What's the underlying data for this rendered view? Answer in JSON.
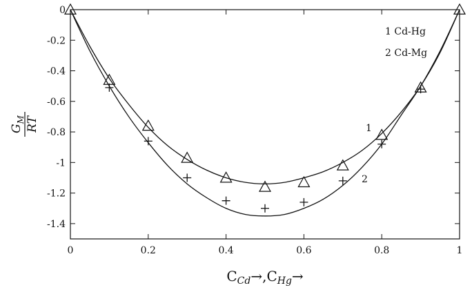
{
  "chart_data": {
    "type": "line",
    "title": "",
    "xlabel": {
      "c1": "C",
      "s1": "Cd",
      "arrow1": "→,",
      "c2": "C",
      "s2": "Hg",
      "arrow2": "→"
    },
    "ylabel": {
      "numerator": "G",
      "numerator_sub": "M",
      "denominator": "RT"
    },
    "xlim": [
      0,
      1
    ],
    "ylim": [
      -1.5,
      0
    ],
    "x_ticks": [
      0,
      0.2,
      0.4,
      0.6,
      0.8,
      1
    ],
    "x_tick_labels": [
      "0",
      "0.2",
      "0.4",
      "0.6",
      "0.8",
      "1"
    ],
    "y_ticks": [
      0,
      -0.2,
      -0.4,
      -0.6,
      -0.8,
      -1,
      -1.2,
      -1.4
    ],
    "y_tick_labels": [
      "0",
      "-0.2",
      "-0.4",
      "-0.6",
      "-0.8",
      "-1",
      "-1.2",
      "-1.4"
    ],
    "grid": false,
    "legend": {
      "placement": "top-right",
      "entries": [
        "1 Cd-Hg",
        "2 Cd-Mg"
      ]
    },
    "series": [
      {
        "name": "1 Cd-Hg",
        "curve_label": "1",
        "marker": "triangle",
        "color": "#111111",
        "curve": {
          "x": [
            0,
            0.05,
            0.1,
            0.15,
            0.2,
            0.25,
            0.3,
            0.35,
            0.4,
            0.45,
            0.5,
            0.55,
            0.6,
            0.65,
            0.7,
            0.75,
            0.8,
            0.85,
            0.9,
            0.95,
            1
          ],
          "y": [
            0,
            -0.24,
            -0.45,
            -0.62,
            -0.77,
            -0.89,
            -0.98,
            -1.05,
            -1.1,
            -1.13,
            -1.14,
            -1.13,
            -1.1,
            -1.06,
            -1.0,
            -0.92,
            -0.81,
            -0.67,
            -0.5,
            -0.28,
            0
          ]
        },
        "points": {
          "x": [
            0,
            0.1,
            0.2,
            0.3,
            0.4,
            0.5,
            0.6,
            0.7,
            0.8,
            0.9,
            1
          ],
          "y": [
            0,
            -0.46,
            -0.76,
            -0.97,
            -1.1,
            -1.16,
            -1.13,
            -1.02,
            -0.82,
            -0.51,
            0
          ]
        }
      },
      {
        "name": "2 Cd-Mg",
        "curve_label": "2",
        "marker": "plus",
        "color": "#111111",
        "curve": {
          "x": [
            0,
            0.05,
            0.1,
            0.15,
            0.2,
            0.25,
            0.3,
            0.35,
            0.4,
            0.45,
            0.5,
            0.55,
            0.6,
            0.65,
            0.7,
            0.75,
            0.8,
            0.85,
            0.9,
            0.95,
            1
          ],
          "y": [
            0,
            -0.27,
            -0.5,
            -0.7,
            -0.87,
            -1.02,
            -1.14,
            -1.23,
            -1.3,
            -1.34,
            -1.35,
            -1.34,
            -1.3,
            -1.24,
            -1.15,
            -1.03,
            -0.88,
            -0.69,
            -0.5,
            -0.27,
            0
          ]
        },
        "points": {
          "x": [
            0.1,
            0.2,
            0.3,
            0.4,
            0.5,
            0.6,
            0.7,
            0.8,
            0.9
          ],
          "y": [
            -0.51,
            -0.86,
            -1.1,
            -1.25,
            -1.3,
            -1.26,
            -1.12,
            -0.88,
            -0.52
          ]
        }
      }
    ]
  }
}
